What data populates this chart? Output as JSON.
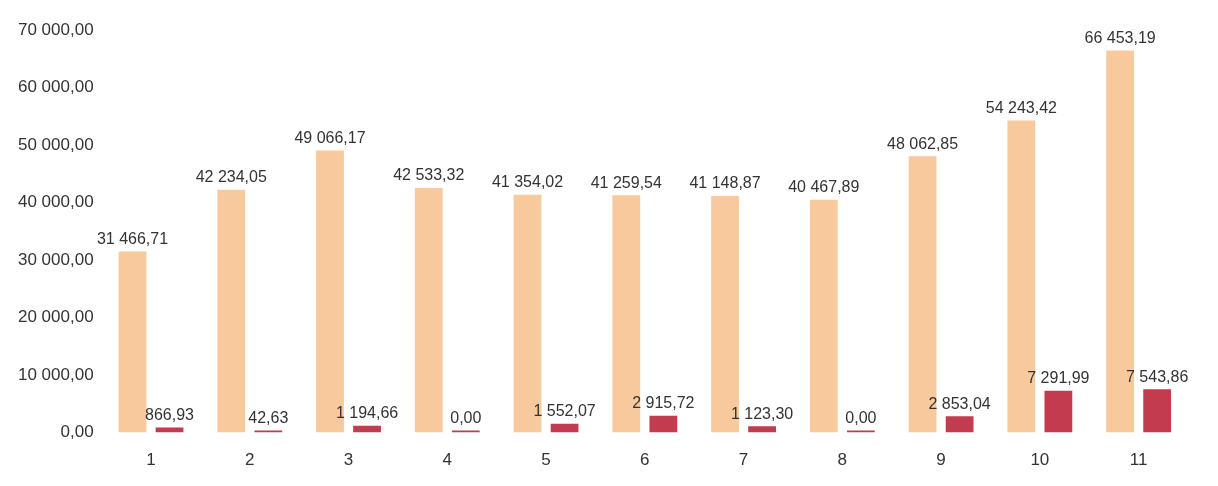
{
  "chart_data": {
    "type": "bar",
    "categories": [
      "1",
      "2",
      "3",
      "4",
      "5",
      "6",
      "7",
      "8",
      "9",
      "10",
      "11"
    ],
    "series": [
      {
        "color": "#f8c99c",
        "values": [
          31466.71,
          42234.05,
          49066.17,
          42533.32,
          41354.02,
          41259.54,
          41148.87,
          40467.89,
          48062.85,
          54243.42,
          66453.19
        ],
        "value_labels": [
          "31 466,71",
          "42 234,05",
          "49 066,17",
          "42 533,32",
          "41 354,02",
          "41 259,54",
          "41 148,87",
          "40 467,89",
          "48 062,85",
          "54 243,42",
          "66 453,19"
        ]
      },
      {
        "color": "#c23b4e",
        "values": [
          866.93,
          42.63,
          1194.66,
          0,
          1552.07,
          2915.72,
          1123.3,
          0,
          2853.04,
          7291.99,
          7543.86
        ],
        "value_labels": [
          "866,93",
          "42,63",
          "1 194,66",
          "0,00",
          "1 552,07",
          "2 915,72",
          "1 123,30",
          "0,00",
          "2 853,04",
          "7 291,99",
          "7 543,86"
        ]
      }
    ],
    "ylim": [
      0,
      70000
    ],
    "yticks": [
      {
        "value": 0,
        "label": "0,00"
      },
      {
        "value": 10000,
        "label": "10 000,00"
      },
      {
        "value": 20000,
        "label": "20 000,00"
      },
      {
        "value": 30000,
        "label": "30 000,00"
      },
      {
        "value": 40000,
        "label": "40 000,00"
      },
      {
        "value": 50000,
        "label": "50 000,00"
      },
      {
        "value": 60000,
        "label": "60 000,00"
      },
      {
        "value": 70000,
        "label": "70 000,00"
      }
    ],
    "grid": false,
    "legend": false
  }
}
